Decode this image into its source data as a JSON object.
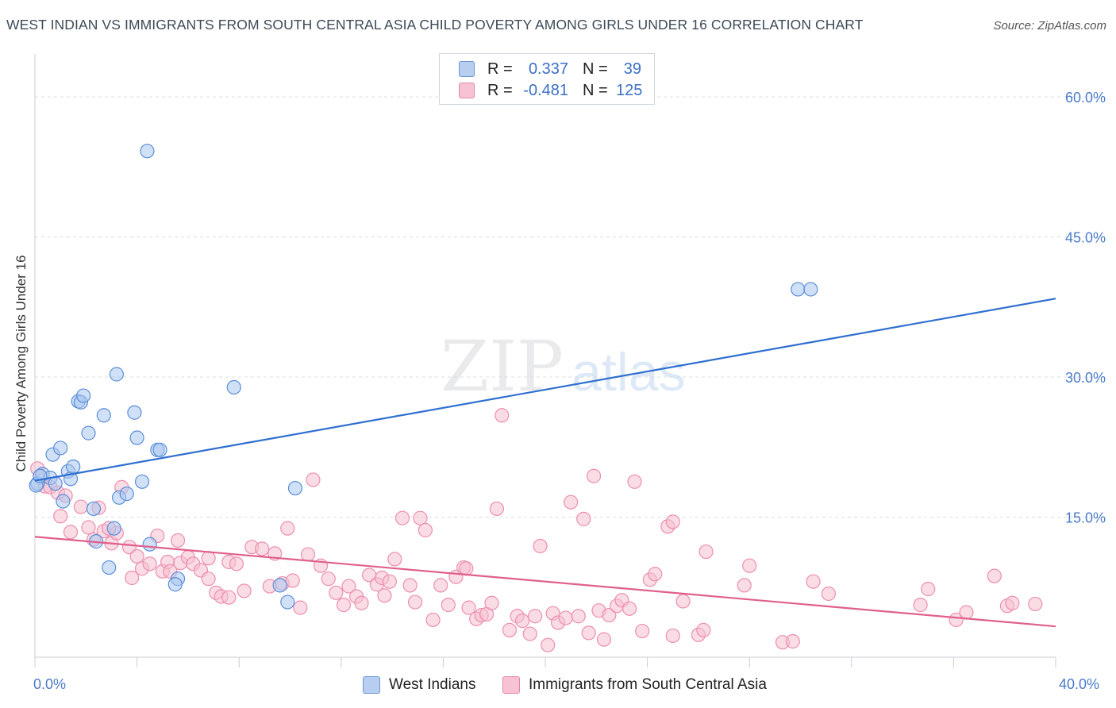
{
  "header": {
    "title": "WEST INDIAN VS IMMIGRANTS FROM SOUTH CENTRAL ASIA CHILD POVERTY AMONG GIRLS UNDER 16 CORRELATION CHART",
    "source": "Source: ZipAtlas.com"
  },
  "watermark": {
    "part1": "ZIP",
    "part2": "atlas"
  },
  "legend": {
    "rows": [
      {
        "r_label": "R =",
        "r_value": "0.337",
        "n_label": "N =",
        "n_value": "39",
        "color": "#6b95d6"
      },
      {
        "r_label": "R =",
        "r_value": "-0.481",
        "n_label": "N =",
        "n_value": "125",
        "color": "#e586a6"
      }
    ]
  },
  "colors": {
    "blue_fill": "#a9c6f0",
    "blue_stroke": "#5b8fd8",
    "blue_line": "#2f6fd0",
    "pink_fill": "#f6bfd0",
    "pink_stroke": "#ec8fae",
    "pink_line": "#e0608c",
    "grid": "#d9dde3",
    "axis_text": "#4a7cc7"
  },
  "chart_data": {
    "type": "scatter",
    "title": "WEST INDIAN VS IMMIGRANTS FROM SOUTH CENTRAL ASIA CHILD POVERTY AMONG GIRLS UNDER 16 CORRELATION CHART",
    "xlabel": "",
    "ylabel": "Child Poverty Among Girls Under 16",
    "xlim": [
      0,
      40
    ],
    "ylim": [
      0,
      64
    ],
    "x_tick_labels": [
      "0.0%",
      "40.0%"
    ],
    "y_ticks": [
      15,
      30,
      45,
      60
    ],
    "y_tick_labels": [
      "15.0%",
      "30.0%",
      "45.0%",
      "60.0%"
    ],
    "grid": true,
    "legend_position": "top-center",
    "series": [
      {
        "name": "West Indians",
        "color": "#5b8fd8",
        "trend": {
          "x": [
            0,
            40
          ],
          "y": [
            18.9,
            38.4
          ]
        },
        "points": [
          [
            0.1,
            18.6
          ],
          [
            0.3,
            19.6
          ],
          [
            0.6,
            19.2
          ],
          [
            0.7,
            21.7
          ],
          [
            0.8,
            18.6
          ],
          [
            1.0,
            22.4
          ],
          [
            1.1,
            16.7
          ],
          [
            1.3,
            19.9
          ],
          [
            1.4,
            19.1
          ],
          [
            1.5,
            20.4
          ],
          [
            1.7,
            27.4
          ],
          [
            1.8,
            27.3
          ],
          [
            1.9,
            28.0
          ],
          [
            2.1,
            24.0
          ],
          [
            2.3,
            15.9
          ],
          [
            2.4,
            12.4
          ],
          [
            2.7,
            25.9
          ],
          [
            2.9,
            9.6
          ],
          [
            3.1,
            13.8
          ],
          [
            3.2,
            30.3
          ],
          [
            3.3,
            17.1
          ],
          [
            3.6,
            17.5
          ],
          [
            3.9,
            26.2
          ],
          [
            4.0,
            23.5
          ],
          [
            4.2,
            18.8
          ],
          [
            4.4,
            54.2
          ],
          [
            4.5,
            12.1
          ],
          [
            4.8,
            22.2
          ],
          [
            4.9,
            22.2
          ],
          [
            5.6,
            8.4
          ],
          [
            5.5,
            7.8
          ],
          [
            7.8,
            28.9
          ],
          [
            9.6,
            7.7
          ],
          [
            10.2,
            18.1
          ],
          [
            9.9,
            5.9
          ],
          [
            29.9,
            39.4
          ],
          [
            30.4,
            39.4
          ],
          [
            0.05,
            18.4
          ],
          [
            0.2,
            19.4
          ]
        ]
      },
      {
        "name": "Immigrants from South Central Asia",
        "color": "#ec8fae",
        "trend": {
          "x": [
            0,
            40
          ],
          "y": [
            12.9,
            3.3
          ]
        },
        "points": [
          [
            0.1,
            20.2
          ],
          [
            0.4,
            18.3
          ],
          [
            0.6,
            18.2
          ],
          [
            0.9,
            17.6
          ],
          [
            1.0,
            15.1
          ],
          [
            1.2,
            17.3
          ],
          [
            1.4,
            13.4
          ],
          [
            1.8,
            16.1
          ],
          [
            2.1,
            13.9
          ],
          [
            2.3,
            12.6
          ],
          [
            2.5,
            16.0
          ],
          [
            2.7,
            13.5
          ],
          [
            3.0,
            12.2
          ],
          [
            3.2,
            13.3
          ],
          [
            3.4,
            18.2
          ],
          [
            3.7,
            11.8
          ],
          [
            3.8,
            8.5
          ],
          [
            4.0,
            10.8
          ],
          [
            4.2,
            9.5
          ],
          [
            4.5,
            10.0
          ],
          [
            4.8,
            13.0
          ],
          [
            5.0,
            9.2
          ],
          [
            5.2,
            10.2
          ],
          [
            5.6,
            12.5
          ],
          [
            5.7,
            10.1
          ],
          [
            6.0,
            10.7
          ],
          [
            6.2,
            10.0
          ],
          [
            6.5,
            9.3
          ],
          [
            6.8,
            10.6
          ],
          [
            7.1,
            6.9
          ],
          [
            7.3,
            6.5
          ],
          [
            7.6,
            10.2
          ],
          [
            7.9,
            10.0
          ],
          [
            8.2,
            7.1
          ],
          [
            8.5,
            11.8
          ],
          [
            8.9,
            11.6
          ],
          [
            9.2,
            7.6
          ],
          [
            9.4,
            11.1
          ],
          [
            9.7,
            7.9
          ],
          [
            9.9,
            13.8
          ],
          [
            10.1,
            8.2
          ],
          [
            10.4,
            5.3
          ],
          [
            10.7,
            11.0
          ],
          [
            10.9,
            19.0
          ],
          [
            11.2,
            9.8
          ],
          [
            11.5,
            8.4
          ],
          [
            11.8,
            6.9
          ],
          [
            12.1,
            5.6
          ],
          [
            12.3,
            7.6
          ],
          [
            12.6,
            6.5
          ],
          [
            12.8,
            5.8
          ],
          [
            13.1,
            8.8
          ],
          [
            13.4,
            7.8
          ],
          [
            13.6,
            8.5
          ],
          [
            13.9,
            8.1
          ],
          [
            14.1,
            10.5
          ],
          [
            14.4,
            14.9
          ],
          [
            14.7,
            7.7
          ],
          [
            14.9,
            5.9
          ],
          [
            15.1,
            14.9
          ],
          [
            15.3,
            13.6
          ],
          [
            15.6,
            4.0
          ],
          [
            15.9,
            7.7
          ],
          [
            16.2,
            5.6
          ],
          [
            16.5,
            8.6
          ],
          [
            16.8,
            9.6
          ],
          [
            17.0,
            5.3
          ],
          [
            17.3,
            4.1
          ],
          [
            17.5,
            4.5
          ],
          [
            17.7,
            4.6
          ],
          [
            17.9,
            5.8
          ],
          [
            18.1,
            15.9
          ],
          [
            18.3,
            25.9
          ],
          [
            18.6,
            2.9
          ],
          [
            18.9,
            4.4
          ],
          [
            19.1,
            3.9
          ],
          [
            19.4,
            2.5
          ],
          [
            19.6,
            4.4
          ],
          [
            19.8,
            11.9
          ],
          [
            20.1,
            1.3
          ],
          [
            20.3,
            4.7
          ],
          [
            20.5,
            3.7
          ],
          [
            20.8,
            4.2
          ],
          [
            21.0,
            16.6
          ],
          [
            21.3,
            4.4
          ],
          [
            21.5,
            14.8
          ],
          [
            21.7,
            2.6
          ],
          [
            21.9,
            19.4
          ],
          [
            22.1,
            5.0
          ],
          [
            22.3,
            1.9
          ],
          [
            22.5,
            4.5
          ],
          [
            22.8,
            5.5
          ],
          [
            23.0,
            6.1
          ],
          [
            23.3,
            5.2
          ],
          [
            23.5,
            18.8
          ],
          [
            23.8,
            2.8
          ],
          [
            24.1,
            8.3
          ],
          [
            24.3,
            8.9
          ],
          [
            25.0,
            2.3
          ],
          [
            24.8,
            14.0
          ],
          [
            25.0,
            14.5
          ],
          [
            25.4,
            6.0
          ],
          [
            26.0,
            2.4
          ],
          [
            26.2,
            2.9
          ],
          [
            26.3,
            11.3
          ],
          [
            27.8,
            7.7
          ],
          [
            28.0,
            9.8
          ],
          [
            29.3,
            1.6
          ],
          [
            29.7,
            1.7
          ],
          [
            30.5,
            8.1
          ],
          [
            31.1,
            6.8
          ],
          [
            34.7,
            5.6
          ],
          [
            35.0,
            7.3
          ],
          [
            36.1,
            4.0
          ],
          [
            36.5,
            4.8
          ],
          [
            37.6,
            8.7
          ],
          [
            38.1,
            5.5
          ],
          [
            38.3,
            5.8
          ],
          [
            39.2,
            5.7
          ],
          [
            5.3,
            9.2
          ],
          [
            7.6,
            6.4
          ],
          [
            6.8,
            8.4
          ],
          [
            16.9,
            9.5
          ],
          [
            13.7,
            6.6
          ],
          [
            2.9,
            13.8
          ]
        ]
      }
    ]
  }
}
